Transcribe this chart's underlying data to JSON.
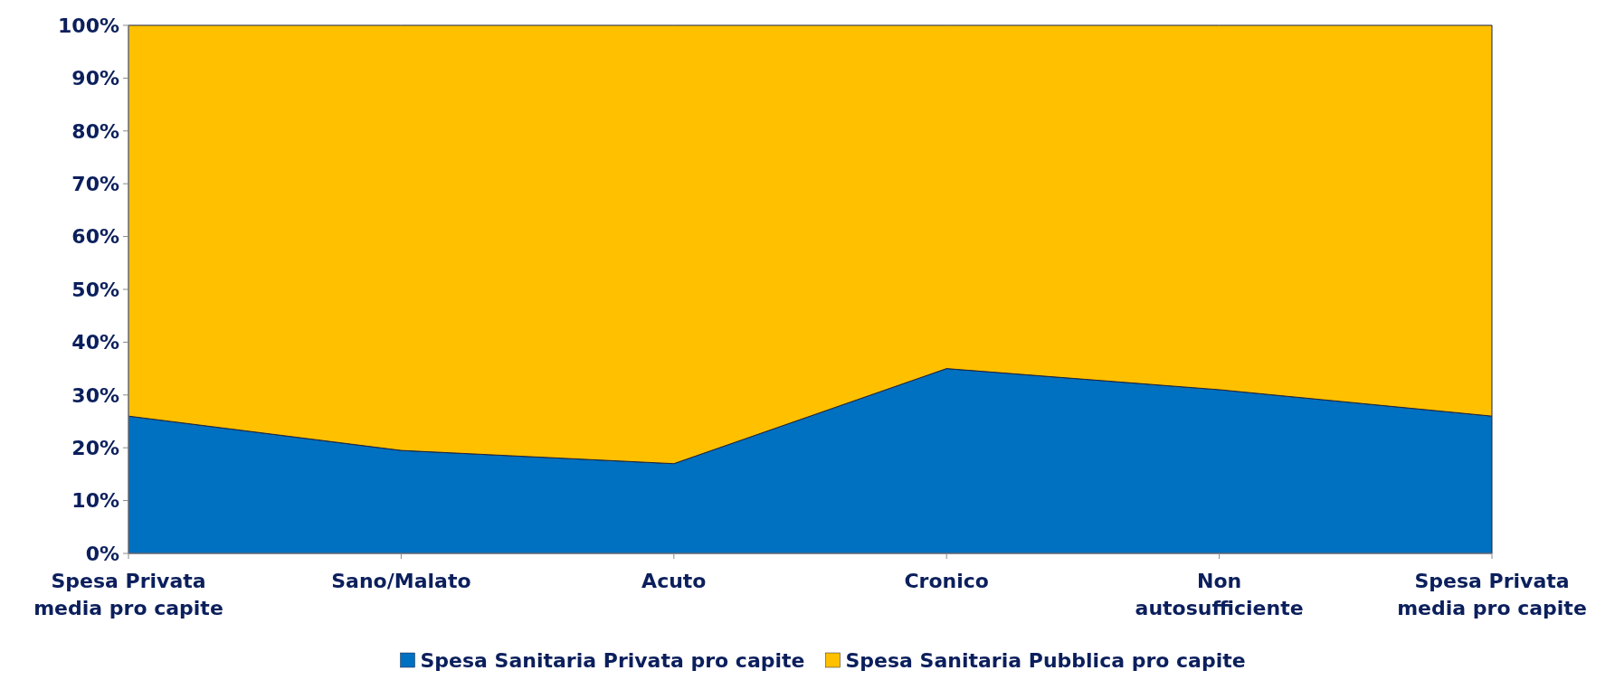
{
  "chart_data": {
    "type": "area",
    "stacked": true,
    "categories": [
      "Spesa Privata media pro capite",
      "Sano/Malato",
      "Acuto",
      "Cronico",
      "Non autosufficiente",
      "Spesa Privata media pro capite"
    ],
    "series": [
      {
        "name": "Spesa Sanitaria Privata pro capite",
        "color": "#0070c0",
        "values": [
          26,
          19.5,
          17,
          35,
          31,
          26
        ]
      },
      {
        "name": "Spesa Sanitaria Pubblica pro capite",
        "color": "#ffc000",
        "values": [
          74,
          80.5,
          83,
          65,
          69,
          74
        ]
      }
    ],
    "ylim": [
      0,
      100
    ],
    "yticks": [
      {
        "value": 0,
        "label": "0%"
      },
      {
        "value": 10,
        "label": "10%"
      },
      {
        "value": 20,
        "label": "20%"
      },
      {
        "value": 30,
        "label": "30%"
      },
      {
        "value": 40,
        "label": "40%"
      },
      {
        "value": 50,
        "label": "50%"
      },
      {
        "value": 60,
        "label": "60%"
      },
      {
        "value": 70,
        "label": "70%"
      },
      {
        "value": 80,
        "label": "80%"
      },
      {
        "value": 90,
        "label": "90%"
      },
      {
        "value": 100,
        "label": "100%"
      }
    ],
    "grid": false,
    "legend": "bottom"
  }
}
